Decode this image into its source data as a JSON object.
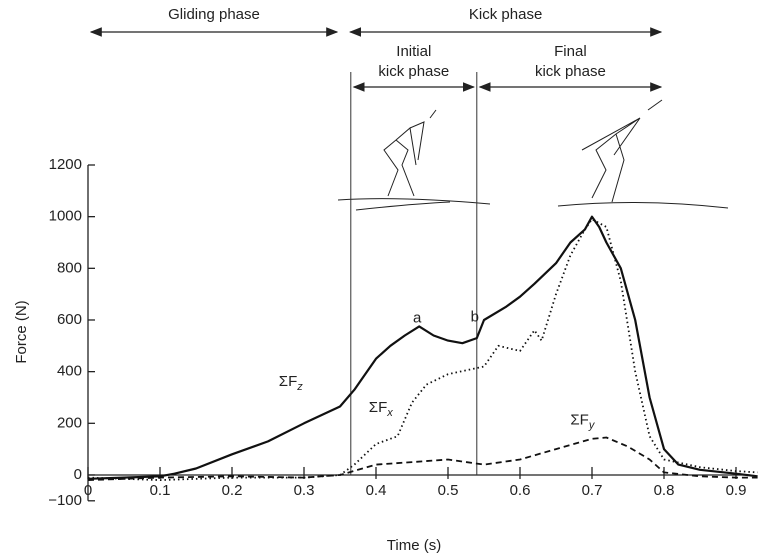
{
  "chart_data": {
    "type": "line",
    "x_label": "Time (s)",
    "y_label": "Force (N)",
    "xlim": [
      0,
      0.92
    ],
    "xticks": [
      0,
      0.1,
      0.2,
      0.3,
      0.4,
      0.5,
      0.6,
      0.7,
      0.8,
      0.9
    ],
    "ylim": [
      -100,
      1200
    ],
    "yticks": [
      {
        "value": -100,
        "label": "−100"
      },
      0,
      200,
      400,
      600,
      800,
      1000,
      1200
    ],
    "phases": [
      {
        "label": [
          "Gliding phase"
        ],
        "start": 0,
        "end": 0.35
      },
      {
        "label": [
          "Kick phase"
        ],
        "start": 0.36,
        "end": 0.8
      },
      {
        "label": [
          "Initial",
          "kick phase"
        ],
        "start": 0.365,
        "end": 0.54
      },
      {
        "label": [
          "Final",
          "kick phase"
        ],
        "start": 0.54,
        "end": 0.8
      }
    ],
    "phase_lines": [
      0.365,
      0.54
    ],
    "annotations": [
      "a",
      "b"
    ],
    "series": [
      {
        "name": "ΣFz",
        "color": "#111",
        "style": "solid",
        "x": [
          0,
          0.05,
          0.1,
          0.12,
          0.15,
          0.2,
          0.25,
          0.3,
          0.35,
          0.37,
          0.4,
          0.42,
          0.44,
          0.46,
          0.48,
          0.5,
          0.52,
          0.54,
          0.55,
          0.58,
          0.6,
          0.62,
          0.65,
          0.67,
          0.69,
          0.7,
          0.71,
          0.72,
          0.74,
          0.76,
          0.78,
          0.8,
          0.82,
          0.85,
          0.9,
          0.93
        ],
        "values": [
          -15,
          -10,
          -5,
          5,
          25,
          80,
          130,
          200,
          265,
          330,
          450,
          500,
          540,
          575,
          540,
          520,
          510,
          530,
          600,
          650,
          690,
          740,
          820,
          900,
          950,
          1000,
          960,
          900,
          800,
          600,
          300,
          100,
          40,
          20,
          5,
          -5
        ]
      },
      {
        "name": "ΣFx",
        "color": "#111",
        "style": "dotted",
        "x": [
          0,
          0.1,
          0.2,
          0.3,
          0.35,
          0.37,
          0.4,
          0.43,
          0.45,
          0.47,
          0.5,
          0.55,
          0.57,
          0.6,
          0.62,
          0.63,
          0.65,
          0.67,
          0.69,
          0.7,
          0.72,
          0.74,
          0.76,
          0.78,
          0.8,
          0.85,
          0.9,
          0.93
        ],
        "values": [
          -10,
          -20,
          -10,
          -10,
          0,
          40,
          120,
          150,
          280,
          350,
          390,
          420,
          500,
          480,
          560,
          520,
          700,
          850,
          950,
          990,
          960,
          750,
          400,
          150,
          60,
          30,
          15,
          10
        ]
      },
      {
        "name": "ΣFy",
        "color": "#111",
        "style": "dashed",
        "x": [
          0,
          0.1,
          0.2,
          0.3,
          0.35,
          0.4,
          0.45,
          0.5,
          0.55,
          0.6,
          0.65,
          0.7,
          0.72,
          0.75,
          0.78,
          0.8,
          0.85,
          0.9,
          0.93
        ],
        "values": [
          -20,
          -10,
          -5,
          -10,
          0,
          40,
          50,
          60,
          40,
          60,
          100,
          140,
          145,
          110,
          60,
          10,
          -5,
          -10,
          -10
        ]
      }
    ]
  }
}
